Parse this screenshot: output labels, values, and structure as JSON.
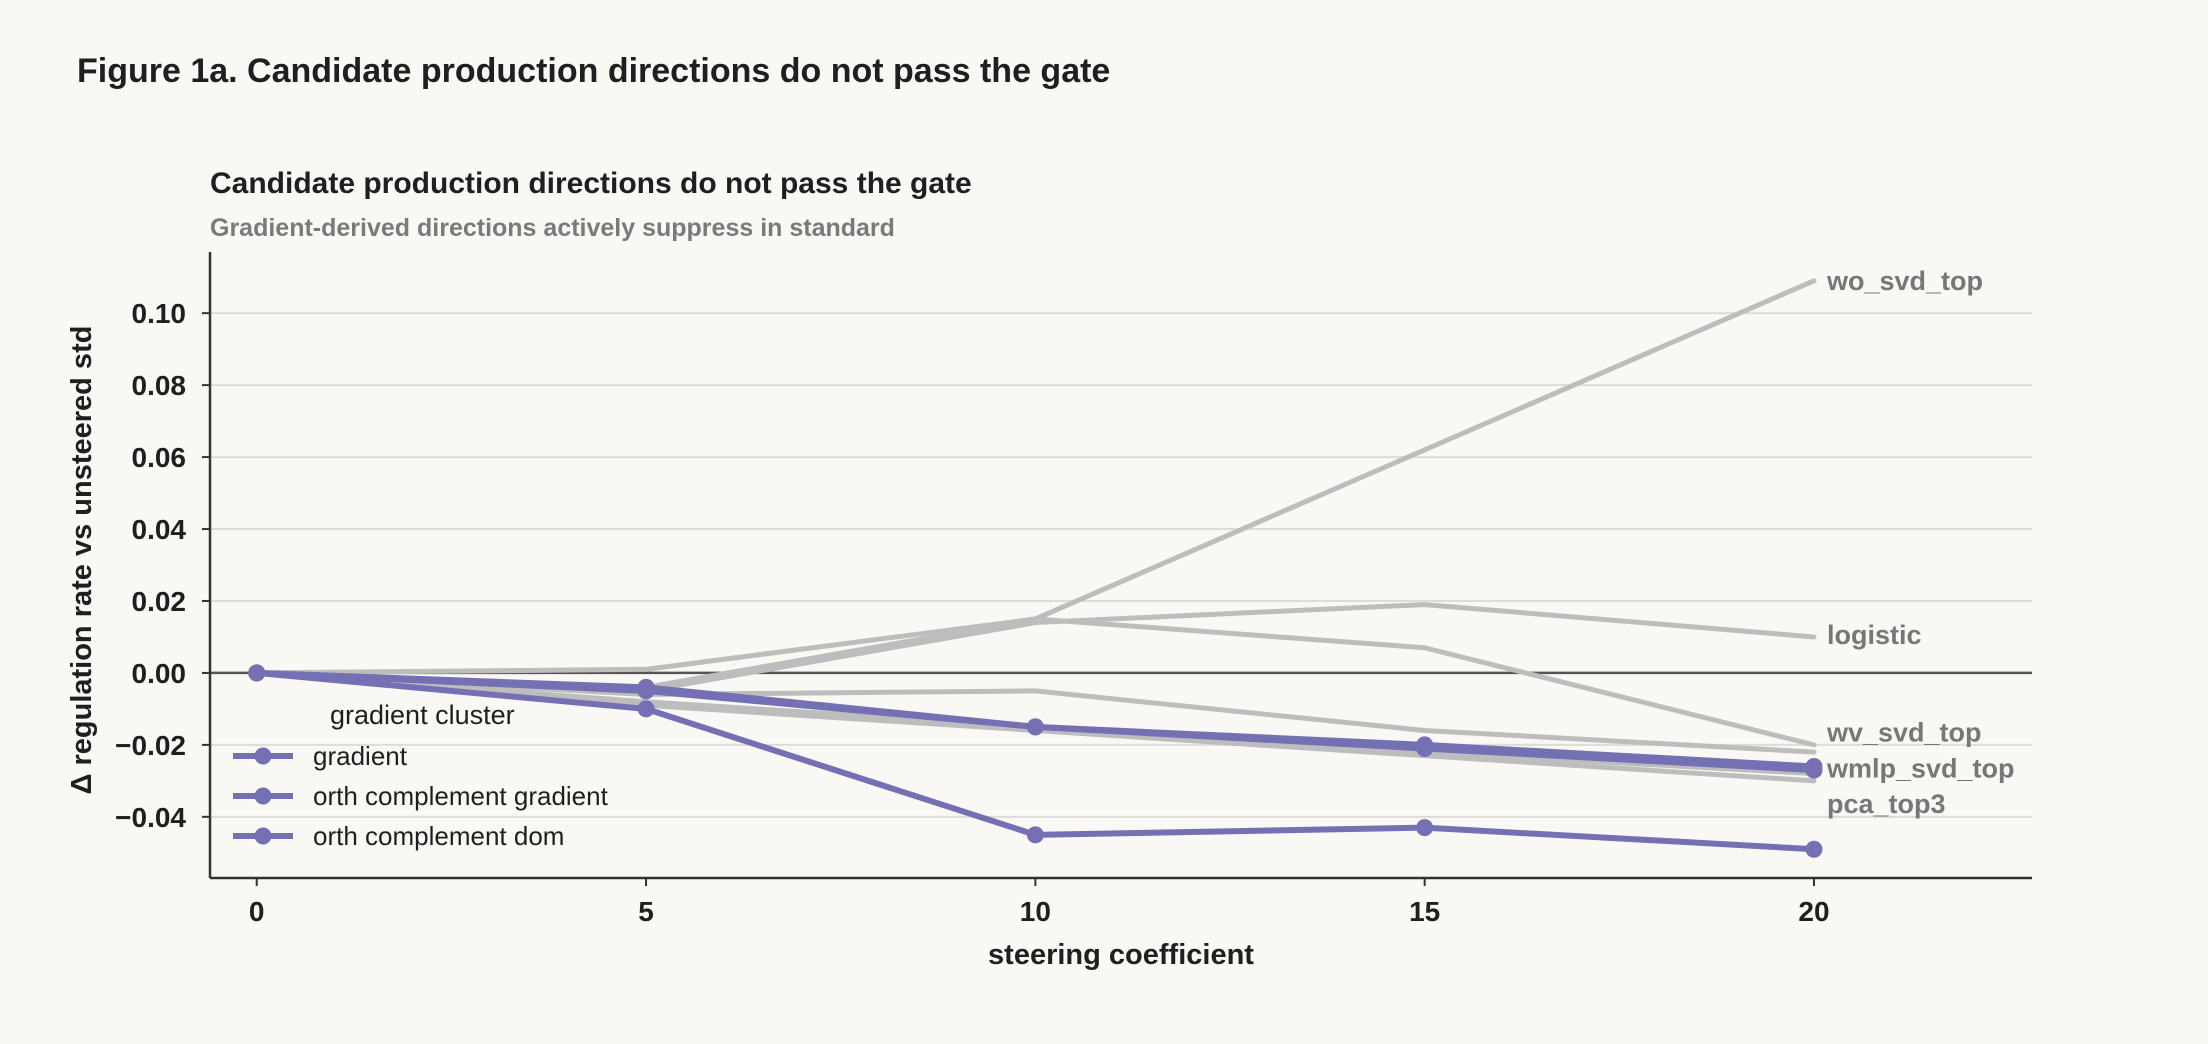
{
  "figure": {
    "title": "Figure 1a. Candidate production directions do not pass the gate"
  },
  "chart_data": {
    "type": "line",
    "title": "Candidate production directions do not pass the gate",
    "subtitle": "Gradient-derived directions actively suppress in standard",
    "xlabel": "steering coefficient",
    "ylabel": "Δ regulation rate vs unsteered std",
    "x": [
      0,
      5,
      10,
      15,
      20
    ],
    "x_ticks": [
      "0",
      "5",
      "10",
      "15",
      "20"
    ],
    "y_ticks": [
      "0.10",
      "0.08",
      "0.06",
      "0.04",
      "0.02",
      "0.00",
      "−0.02",
      "−0.04"
    ],
    "xlim": [
      -0.6,
      22.8
    ],
    "ylim": [
      -0.057,
      0.117
    ],
    "grid": "horizontal",
    "legend": {
      "title": "gradient cluster",
      "placement": "lower-left"
    },
    "colors": {
      "gradient_cluster": "#7570b3",
      "other": "#bdbdbd",
      "zero_line": "#555555",
      "end_label": "#777777"
    },
    "series": [
      {
        "group": "other",
        "values": [
          0,
          0.001,
          0.015,
          0.062,
          0.109
        ]
      },
      {
        "group": "other",
        "values": [
          0,
          -0.005,
          0.014,
          0.019,
          0.01
        ]
      },
      {
        "group": "other",
        "values": [
          0,
          -0.004,
          0.015,
          0.007,
          -0.02
        ]
      },
      {
        "group": "other",
        "values": [
          0,
          -0.006,
          -0.005,
          -0.016,
          -0.022
        ]
      },
      {
        "group": "other",
        "values": [
          0,
          -0.008,
          -0.015,
          -0.022,
          -0.028
        ]
      },
      {
        "group": "other",
        "values": [
          0,
          -0.009,
          -0.016,
          -0.023,
          -0.03
        ]
      },
      {
        "name": "gradient",
        "group": "gradient_cluster",
        "values": [
          0,
          -0.004,
          -0.015,
          -0.02,
          -0.026
        ]
      },
      {
        "name": "orth complement gradient",
        "group": "gradient_cluster",
        "values": [
          0,
          -0.005,
          -0.015,
          -0.021,
          -0.027
        ]
      },
      {
        "name": "orth complement dom",
        "group": "gradient_cluster",
        "values": [
          0,
          -0.01,
          -0.045,
          -0.043,
          -0.049
        ]
      }
    ],
    "end_labels": [
      {
        "text": "wo_svd_top",
        "y": 0.109
      },
      {
        "text": "logistic",
        "y": 0.0105
      },
      {
        "text": "wv_svd_top",
        "y": -0.0165
      },
      {
        "text": "wmlp_svd_top",
        "y": -0.0265
      },
      {
        "text": "pca_top3",
        "y": -0.0365
      }
    ]
  }
}
